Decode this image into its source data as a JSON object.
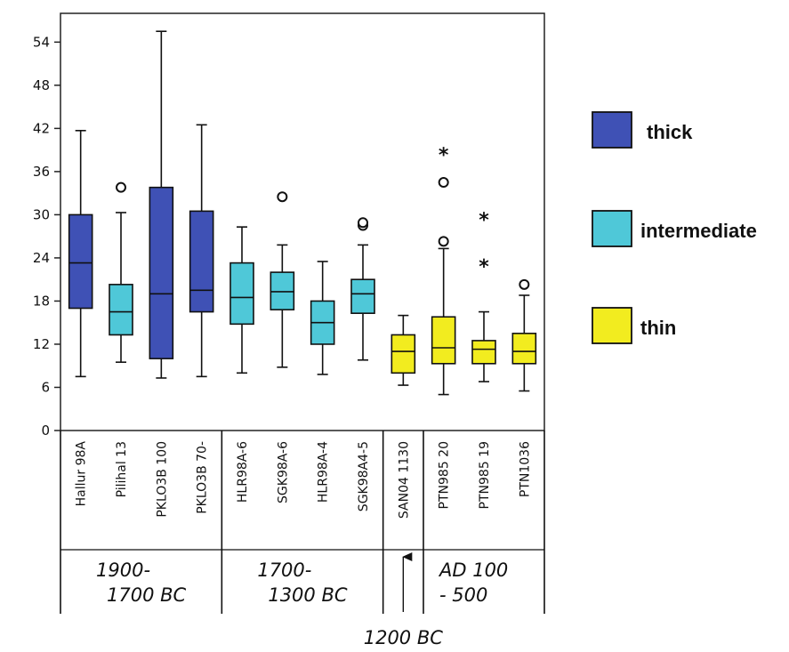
{
  "chart_data": {
    "type": "boxplot",
    "ylim": [
      0,
      58
    ],
    "yticks": [
      0,
      6,
      12,
      18,
      24,
      30,
      36,
      42,
      48,
      54
    ],
    "colors": {
      "thick": "#3f51b5",
      "intermediate": "#4fc8d8",
      "thin": "#f2ec1f"
    },
    "legend": [
      {
        "key": "thick",
        "label": "thick"
      },
      {
        "key": "intermediate",
        "label": "intermediate"
      },
      {
        "key": "thin",
        "label": "thin"
      }
    ],
    "boxes": [
      {
        "label": "Hallur 98A",
        "group": "thick",
        "min": 7.5,
        "q1": 17,
        "median": 23.3,
        "q3": 30,
        "max": 41.7,
        "outliers": []
      },
      {
        "label": "Pilihal 13",
        "group": "intermediate",
        "min": 9.5,
        "q1": 13.3,
        "median": 16.5,
        "q3": 20.3,
        "max": 30.3,
        "outliers": [
          {
            "value": 33.8,
            "marker": "circle"
          }
        ]
      },
      {
        "label": "PKLO3B 100",
        "group": "thick",
        "min": 7.3,
        "q1": 10,
        "median": 19,
        "q3": 33.8,
        "max": 55.5,
        "outliers": []
      },
      {
        "label": "PKLO3B 70-",
        "group": "thick",
        "min": 7.5,
        "q1": 16.5,
        "median": 19.5,
        "q3": 30.5,
        "max": 42.5,
        "outliers": []
      },
      {
        "label": "HLR98A-6",
        "group": "intermediate",
        "min": 8,
        "q1": 14.8,
        "median": 18.5,
        "q3": 23.3,
        "max": 28.3,
        "outliers": []
      },
      {
        "label": "SGK98A-6",
        "group": "intermediate",
        "min": 8.8,
        "q1": 16.8,
        "median": 19.3,
        "q3": 22,
        "max": 25.8,
        "outliers": [
          {
            "value": 32.5,
            "marker": "circle"
          }
        ]
      },
      {
        "label": "HLR98A-4",
        "group": "intermediate",
        "min": 7.8,
        "q1": 12,
        "median": 15,
        "q3": 18,
        "max": 23.5,
        "outliers": []
      },
      {
        "label": "SGK98A4-5",
        "group": "intermediate",
        "min": 9.8,
        "q1": 16.3,
        "median": 19,
        "q3": 21,
        "max": 25.8,
        "outliers": [
          {
            "value": 28.5,
            "marker": "circle"
          },
          {
            "value": 28.9,
            "marker": "circle"
          }
        ]
      },
      {
        "label": "SAN04 1130",
        "group": "thin",
        "min": 6.3,
        "q1": 8,
        "median": 11,
        "q3": 13.3,
        "max": 16,
        "outliers": []
      },
      {
        "label": "PTN985 20",
        "group": "thin",
        "min": 5,
        "q1": 9.3,
        "median": 11.5,
        "q3": 15.8,
        "max": 25.3,
        "outliers": [
          {
            "value": 26.3,
            "marker": "circle"
          },
          {
            "value": 34.5,
            "marker": "circle"
          },
          {
            "value": 38.5,
            "marker": "asterisk"
          }
        ]
      },
      {
        "label": "PTN985 19",
        "group": "thin",
        "min": 6.8,
        "q1": 9.3,
        "median": 11.3,
        "q3": 12.5,
        "max": 16.5,
        "outliers": [
          {
            "value": 23,
            "marker": "asterisk"
          },
          {
            "value": 29.5,
            "marker": "asterisk"
          }
        ]
      },
      {
        "label": "PTN1036",
        "group": "thin",
        "min": 5.5,
        "q1": 9.3,
        "median": 11,
        "q3": 13.5,
        "max": 18.8,
        "outliers": [
          {
            "value": 20.3,
            "marker": "circle"
          }
        ]
      }
    ],
    "periods": [
      {
        "line1": "1900-",
        "line2": "1700 BC",
        "from": 0,
        "to": 3
      },
      {
        "line1": "1700-",
        "line2": "1300 BC",
        "from": 4,
        "to": 7
      },
      {
        "line1": "1200 BC",
        "line2": "",
        "from": 8,
        "to": 8
      },
      {
        "line1": "AD 100",
        "line2": "- 500",
        "from": 9,
        "to": 11
      }
    ]
  }
}
